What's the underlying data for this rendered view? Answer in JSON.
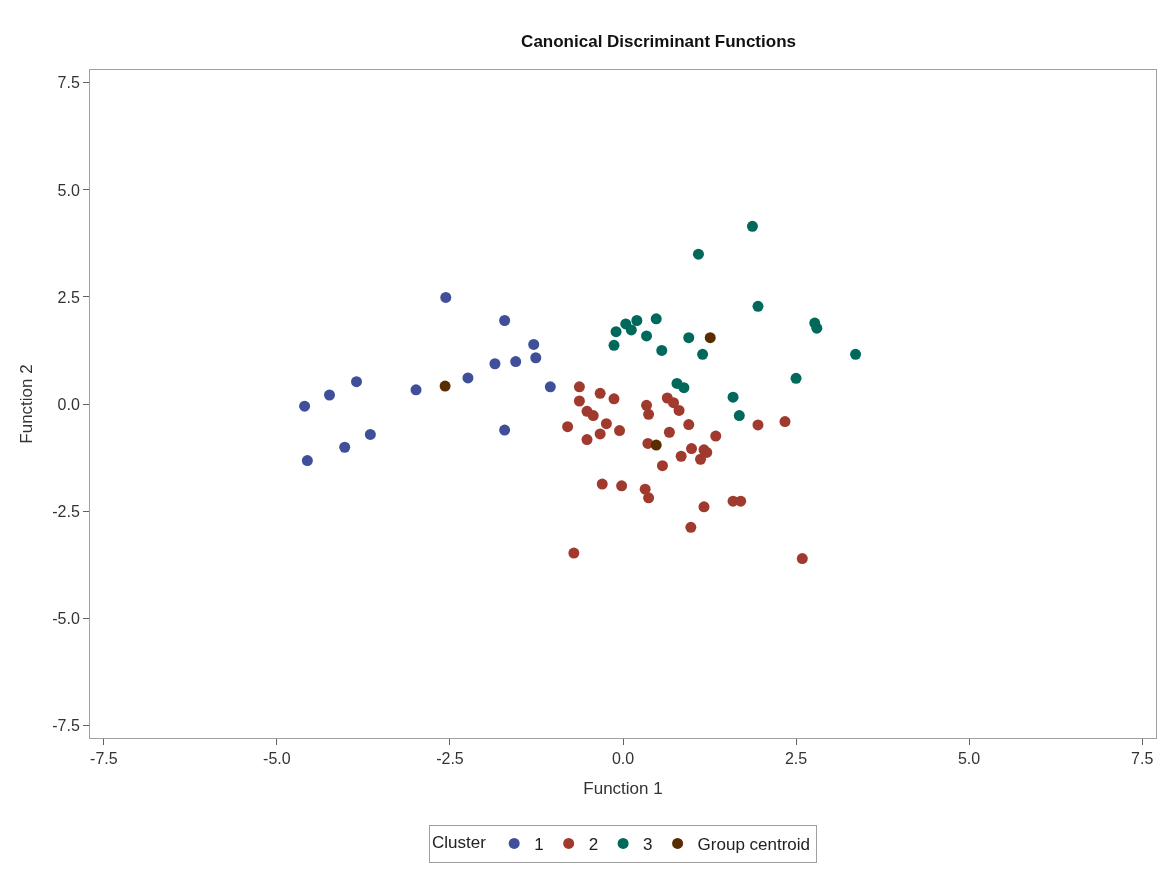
{
  "chart_data": {
    "type": "scatter",
    "title": "Canonical Discriminant Functions",
    "xlabel": "Function 1",
    "ylabel": "Function 2",
    "legend_title": "Cluster",
    "xlim": [
      -7.7,
      7.7
    ],
    "ylim": [
      -7.8,
      7.8
    ],
    "xticks": [
      -7.5,
      {
        "value": -5,
        "label": "-5.0"
      },
      -2.5,
      {
        "value": 0,
        "label": "0.0"
      },
      2.5,
      {
        "value": 5,
        "label": "5.0"
      },
      7.5
    ],
    "yticks": [
      -7.5,
      {
        "value": -5,
        "label": "-5.0"
      },
      -2.5,
      {
        "value": 0,
        "label": "0.0"
      },
      2.5,
      {
        "value": 5,
        "label": "5.0"
      },
      7.5
    ],
    "legend": "bottom",
    "marker": "circle",
    "series": [
      {
        "name": "1",
        "color": "#3f4f9a",
        "x": [
          -4.6,
          -4.56,
          -4.24,
          -4.02,
          -3.85,
          -3.65,
          -2.99,
          -2.56,
          -2.24,
          -1.85,
          -1.71,
          -1.71,
          -1.55,
          -1.29,
          -1.26,
          -1.05
        ],
        "values": [
          -0.05,
          -1.32,
          0.21,
          -1.01,
          0.52,
          -0.71,
          0.33,
          2.49,
          0.61,
          0.94,
          1.95,
          -0.61,
          0.99,
          1.39,
          1.08,
          0.4
        ]
      },
      {
        "name": "2",
        "color": "#a13a2e",
        "x": [
          -0.63,
          -0.33,
          -0.13,
          -0.63,
          -0.52,
          -0.43,
          -0.8,
          -0.24,
          -0.33,
          -0.52,
          -0.05,
          0.34,
          0.37,
          0.64,
          0.73,
          0.81,
          0.95,
          0.67,
          1.34,
          0.36,
          0.84,
          0.99,
          1.12,
          1.21,
          1.17,
          0.57,
          -0.3,
          -0.02,
          0.32,
          0.37,
          1.17,
          1.59,
          1.7,
          0.98,
          -0.71,
          2.59,
          1.95,
          2.34
        ],
        "values": [
          0.4,
          0.25,
          0.12,
          0.07,
          -0.17,
          -0.27,
          -0.53,
          -0.46,
          -0.7,
          -0.83,
          -0.62,
          -0.03,
          -0.24,
          0.14,
          0.03,
          -0.15,
          -0.48,
          -0.66,
          -0.75,
          -0.92,
          -1.22,
          -1.04,
          -1.29,
          -1.13,
          -1.07,
          -1.44,
          -1.87,
          -1.91,
          -1.99,
          -2.19,
          -2.4,
          -2.27,
          -2.27,
          -2.88,
          -3.48,
          -3.61,
          -0.49,
          -0.41
        ]
      },
      {
        "name": "3",
        "color": "#00695c",
        "x": [
          1.87,
          1.09,
          1.95,
          2.77,
          2.8,
          3.36,
          0.48,
          0.2,
          0.04,
          0.12,
          -0.1,
          -0.13,
          0.34,
          0.56,
          0.95,
          1.15,
          2.5,
          0.78,
          0.88,
          1.59,
          1.68
        ],
        "values": [
          4.15,
          3.5,
          2.28,
          1.89,
          1.77,
          1.16,
          1.99,
          1.95,
          1.87,
          1.73,
          1.69,
          1.37,
          1.59,
          1.25,
          1.55,
          1.16,
          0.6,
          0.48,
          0.38,
          0.16,
          -0.27
        ]
      },
      {
        "name": "Group centroid",
        "color": "#5a2d00",
        "x": [
          -2.57,
          0.48,
          1.26
        ],
        "values": [
          0.42,
          -0.96,
          1.55
        ]
      }
    ]
  }
}
